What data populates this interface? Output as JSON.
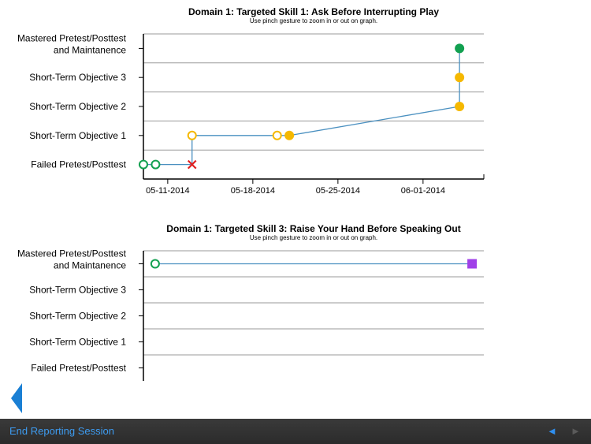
{
  "chart_data": [
    {
      "type": "line",
      "title": "Domain 1: Targeted Skill 1: Ask Before Interrupting Play",
      "subtitle": "Use pinch gesture to zoom in or out on graph.",
      "ylabels": [
        "Failed Pretest/Posttest",
        "Short-Term Objective 1",
        "Short-Term Objective 2",
        "Short-Term Objective 3",
        "Mastered Pretest/Posttest and Maintanence"
      ],
      "xticks": [
        "05-11-2014",
        "05-18-2014",
        "05-25-2014",
        "06-01-2014"
      ],
      "xlim": [
        "2014-05-09",
        "2014-06-06"
      ],
      "grid": true,
      "line_color": "#4a90c0",
      "points": [
        {
          "x": "2014-05-09",
          "y": 0,
          "marker": "open-circle",
          "color": "#12a050"
        },
        {
          "x": "2014-05-10",
          "y": 0,
          "marker": "open-circle",
          "color": "#12a050"
        },
        {
          "x": "2014-05-13",
          "y": 0,
          "marker": "x",
          "color": "#e02020"
        },
        {
          "x": "2014-05-13",
          "y": 1,
          "marker": "open-circle",
          "color": "#f5b800"
        },
        {
          "x": "2014-05-20",
          "y": 1,
          "marker": "open-circle",
          "color": "#f5b800"
        },
        {
          "x": "2014-05-21",
          "y": 1,
          "marker": "filled-circle",
          "color": "#f5b800"
        },
        {
          "x": "2014-06-04",
          "y": 2,
          "marker": "filled-circle",
          "color": "#f5b800"
        },
        {
          "x": "2014-06-04",
          "y": 3,
          "marker": "filled-circle",
          "color": "#f5b800"
        },
        {
          "x": "2014-06-04",
          "y": 4,
          "marker": "filled-circle",
          "color": "#12a050"
        }
      ]
    },
    {
      "type": "line",
      "title": "Domain 1: Targeted Skill 3: Raise Your Hand Before Speaking Out",
      "subtitle": "Use pinch gesture to zoom in or out on graph.",
      "ylabels": [
        "Failed Pretest/Posttest",
        "Short-Term Objective 1",
        "Short-Term Objective 2",
        "Short-Term Objective 3",
        "Mastered Pretest/Posttest and Maintanence"
      ],
      "xticks": [],
      "xlim": [
        "2014-05-08",
        "2014-06-06"
      ],
      "grid": true,
      "line_color": "#4a90c0",
      "points": [
        {
          "x": "2014-05-09",
          "y": 4,
          "marker": "open-circle",
          "color": "#12a050"
        },
        {
          "x": "2014-06-05",
          "y": 4,
          "marker": "square",
          "color": "#a040e8"
        }
      ]
    }
  ],
  "footer": {
    "end_session_label": "End Reporting Session",
    "prev_icon": "◄",
    "next_icon": "►"
  }
}
